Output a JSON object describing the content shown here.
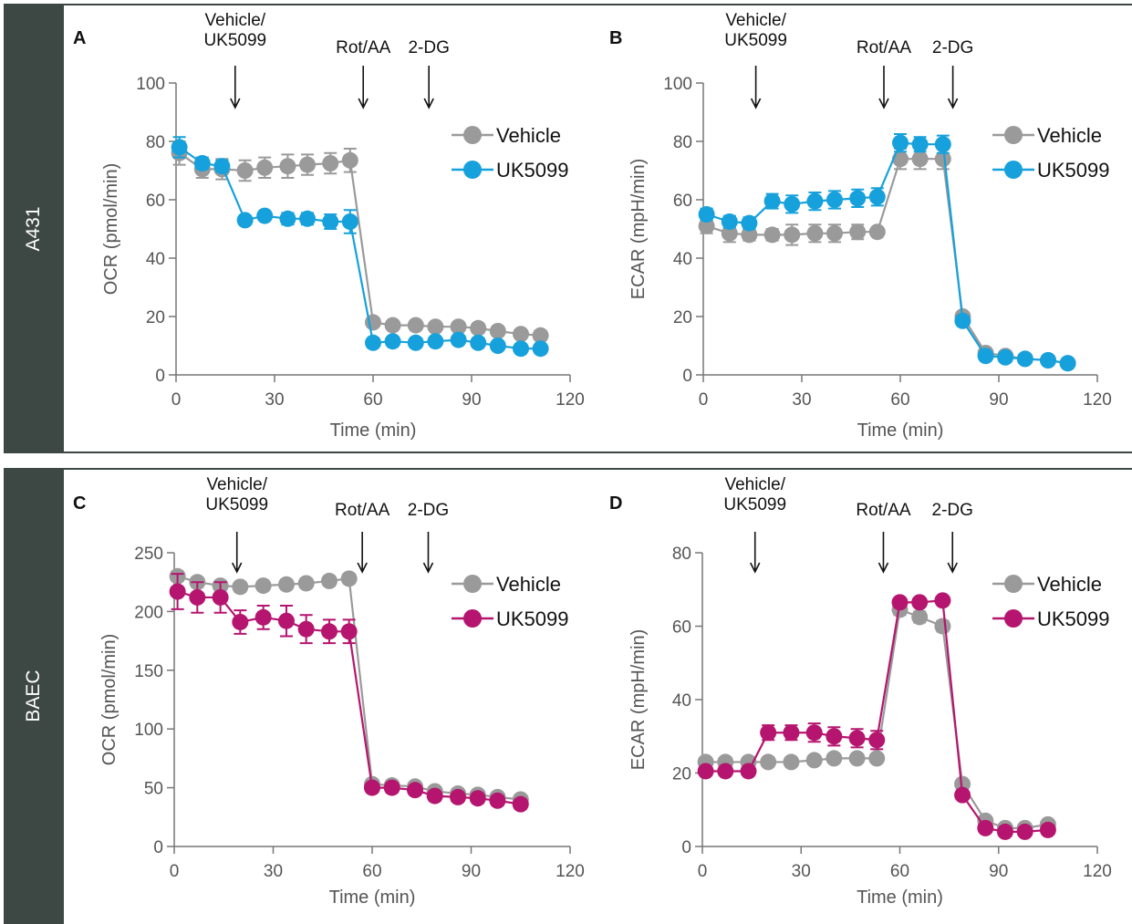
{
  "bands": [
    {
      "label": "A431"
    },
    {
      "label": "BAEC"
    }
  ],
  "colors": {
    "vehicle": "#9a9a9a",
    "a431_uk5099": "#16a1dc",
    "baec_uk5099": "#b5156f",
    "axis": "#777777"
  },
  "chart_data": [
    {
      "panel": "A",
      "type": "line",
      "band": "A431",
      "xlabel": "Time (min)",
      "ylabel": "OCR (pmol/min)",
      "xlim": [
        0,
        120
      ],
      "ylim": [
        0,
        100
      ],
      "xticks": [
        0,
        30,
        60,
        90,
        120
      ],
      "yticks": [
        0,
        20,
        40,
        60,
        80,
        100
      ],
      "annotations": [
        {
          "text": "Vehicle/\nUK5099",
          "x": 18
        },
        {
          "text": "Rot/AA",
          "x": 57
        },
        {
          "text": "2-DG",
          "x": 77
        }
      ],
      "legend": "right",
      "series": [
        {
          "name": "Vehicle",
          "color": "#9a9a9a",
          "x": [
            1,
            8,
            14,
            21,
            27,
            34,
            40,
            47,
            53,
            60,
            66,
            73,
            79,
            86,
            92,
            98,
            105,
            111
          ],
          "y": [
            76,
            70.5,
            70.5,
            70,
            71,
            71.5,
            72,
            72.5,
            73.5,
            18,
            17,
            17,
            16.5,
            16.5,
            16,
            15,
            14,
            13.5
          ],
          "err": [
            4,
            3,
            3.5,
            3.5,
            3.5,
            4,
            3.5,
            3.5,
            4,
            1,
            1,
            1,
            1,
            1,
            1,
            1,
            1,
            1
          ]
        },
        {
          "name": "UK5099",
          "color": "#16a1dc",
          "x": [
            1,
            8,
            14,
            21,
            27,
            34,
            40,
            47,
            53,
            60,
            66,
            73,
            79,
            86,
            92,
            98,
            105,
            111
          ],
          "y": [
            78,
            72.5,
            71.5,
            53,
            54.5,
            53.5,
            53.5,
            52.5,
            52.5,
            11,
            11.5,
            11,
            11.5,
            12,
            11,
            10,
            9,
            9
          ],
          "err": [
            3.5,
            2,
            2,
            1,
            1.5,
            2,
            2,
            2.5,
            4,
            1,
            1,
            1,
            1,
            1,
            1,
            1,
            1,
            1
          ]
        }
      ]
    },
    {
      "panel": "B",
      "type": "line",
      "band": "A431",
      "xlabel": "Time (min)",
      "ylabel": "ECAR (mpH/min)",
      "xlim": [
        0,
        120
      ],
      "ylim": [
        0,
        100
      ],
      "xticks": [
        0,
        30,
        60,
        90,
        120
      ],
      "yticks": [
        0,
        20,
        40,
        60,
        80,
        100
      ],
      "annotations": [
        {
          "text": "Vehicle/\nUK5099",
          "x": 16
        },
        {
          "text": "Rot/AA",
          "x": 55
        },
        {
          "text": "2-DG",
          "x": 76
        }
      ],
      "legend": "right",
      "series": [
        {
          "name": "Vehicle",
          "color": "#9a9a9a",
          "x": [
            1,
            8,
            14,
            21,
            27,
            34,
            40,
            47,
            53,
            60,
            66,
            73,
            79,
            86,
            92,
            98,
            105,
            111
          ],
          "y": [
            51,
            48.5,
            48,
            48,
            48,
            48.5,
            48.5,
            49,
            49,
            74,
            74,
            74,
            20,
            7.5,
            6.5,
            5.5,
            5,
            4
          ],
          "err": [
            2.5,
            3,
            2,
            2,
            3.5,
            3,
            3,
            2.5,
            1,
            3.5,
            3.5,
            3.5,
            1,
            1,
            1,
            1,
            1,
            1
          ]
        },
        {
          "name": "UK5099",
          "color": "#16a1dc",
          "x": [
            1,
            8,
            14,
            21,
            27,
            34,
            40,
            47,
            53,
            60,
            66,
            73,
            79,
            86,
            92,
            98,
            105,
            111
          ],
          "y": [
            55,
            52.5,
            52,
            59.5,
            58.5,
            59.5,
            60,
            60.5,
            61,
            79.5,
            79,
            79,
            18.5,
            6.5,
            6,
            5.5,
            5,
            4
          ],
          "err": [
            2,
            2,
            2,
            2.5,
            3,
            3,
            3,
            3,
            3,
            3,
            2.5,
            3,
            1,
            1,
            1,
            1,
            1,
            1
          ]
        }
      ]
    },
    {
      "panel": "C",
      "type": "line",
      "band": "BAEC",
      "xlabel": "Time (min)",
      "ylabel": "OCR (pmol/min)",
      "xlim": [
        0,
        120
      ],
      "ylim": [
        0,
        250
      ],
      "xticks": [
        0,
        30,
        60,
        90,
        120
      ],
      "yticks": [
        0,
        50,
        100,
        150,
        200,
        250
      ],
      "annotations": [
        {
          "text": "Vehicle/\nUK5099",
          "x": 19
        },
        {
          "text": "Rot/AA",
          "x": 57
        },
        {
          "text": "2-DG",
          "x": 77
        }
      ],
      "legend": "right",
      "series": [
        {
          "name": "Vehicle",
          "color": "#9a9a9a",
          "x": [
            1,
            7,
            14,
            20,
            27,
            34,
            40,
            47,
            53,
            60,
            66,
            73,
            79,
            86,
            92,
            98,
            105
          ],
          "y": [
            230,
            225,
            222,
            221,
            222,
            223,
            224,
            226,
            228,
            53,
            52,
            51,
            47,
            45,
            44,
            42,
            40
          ],
          "err": [
            4,
            4,
            4,
            4,
            4,
            4,
            4,
            4,
            4,
            3,
            3,
            3,
            3,
            3,
            3,
            3,
            3
          ]
        },
        {
          "name": "UK5099",
          "color": "#b5156f",
          "x": [
            1,
            7,
            14,
            20,
            27,
            34,
            40,
            47,
            53,
            60,
            66,
            73,
            79,
            86,
            92,
            98,
            105
          ],
          "y": [
            217,
            212,
            212,
            191,
            195,
            192,
            185,
            183,
            183,
            50,
            50,
            48,
            43,
            42,
            41,
            39,
            36
          ],
          "err": [
            15,
            13,
            13,
            10,
            10,
            13,
            12,
            10,
            10,
            4,
            4,
            4,
            4,
            4,
            4,
            4,
            4
          ]
        }
      ]
    },
    {
      "panel": "D",
      "type": "line",
      "band": "BAEC",
      "xlabel": "Time (min)",
      "ylabel": "ECAR (mpH/min)",
      "xlim": [
        0,
        120
      ],
      "ylim": [
        0,
        80
      ],
      "xticks": [
        0,
        30,
        60,
        90,
        120
      ],
      "yticks": [
        0,
        20,
        40,
        60,
        80
      ],
      "annotations": [
        {
          "text": "Vehicle/\nUK5099",
          "x": 16
        },
        {
          "text": "Rot/AA",
          "x": 55
        },
        {
          "text": "2-DG",
          "x": 76
        }
      ],
      "legend": "right",
      "series": [
        {
          "name": "Vehicle",
          "color": "#9a9a9a",
          "x": [
            1,
            7,
            14,
            20,
            27,
            34,
            40,
            47,
            53,
            60,
            66,
            73,
            79,
            86,
            92,
            98,
            105
          ],
          "y": [
            23,
            23,
            23,
            23,
            23,
            23.5,
            24,
            24,
            24,
            64.5,
            62.5,
            60,
            17,
            7,
            5,
            5,
            6
          ],
          "err": [
            1,
            1,
            1,
            1,
            1,
            1,
            1,
            1,
            1,
            1.5,
            1.5,
            1.5,
            1,
            1,
            1,
            1,
            1
          ]
        },
        {
          "name": "UK5099",
          "color": "#b5156f",
          "x": [
            1,
            7,
            14,
            20,
            27,
            34,
            40,
            47,
            53,
            60,
            66,
            73,
            79,
            86,
            92,
            98,
            105
          ],
          "y": [
            20.5,
            20.5,
            20.5,
            31,
            31,
            31,
            30,
            29.5,
            29,
            66.5,
            66.5,
            67,
            14,
            5,
            4,
            4,
            4.5
          ],
          "err": [
            1,
            1,
            1,
            2,
            2,
            2.5,
            2.5,
            2.5,
            2.5,
            1,
            1,
            1,
            1,
            1,
            1,
            1,
            1
          ]
        }
      ]
    }
  ]
}
